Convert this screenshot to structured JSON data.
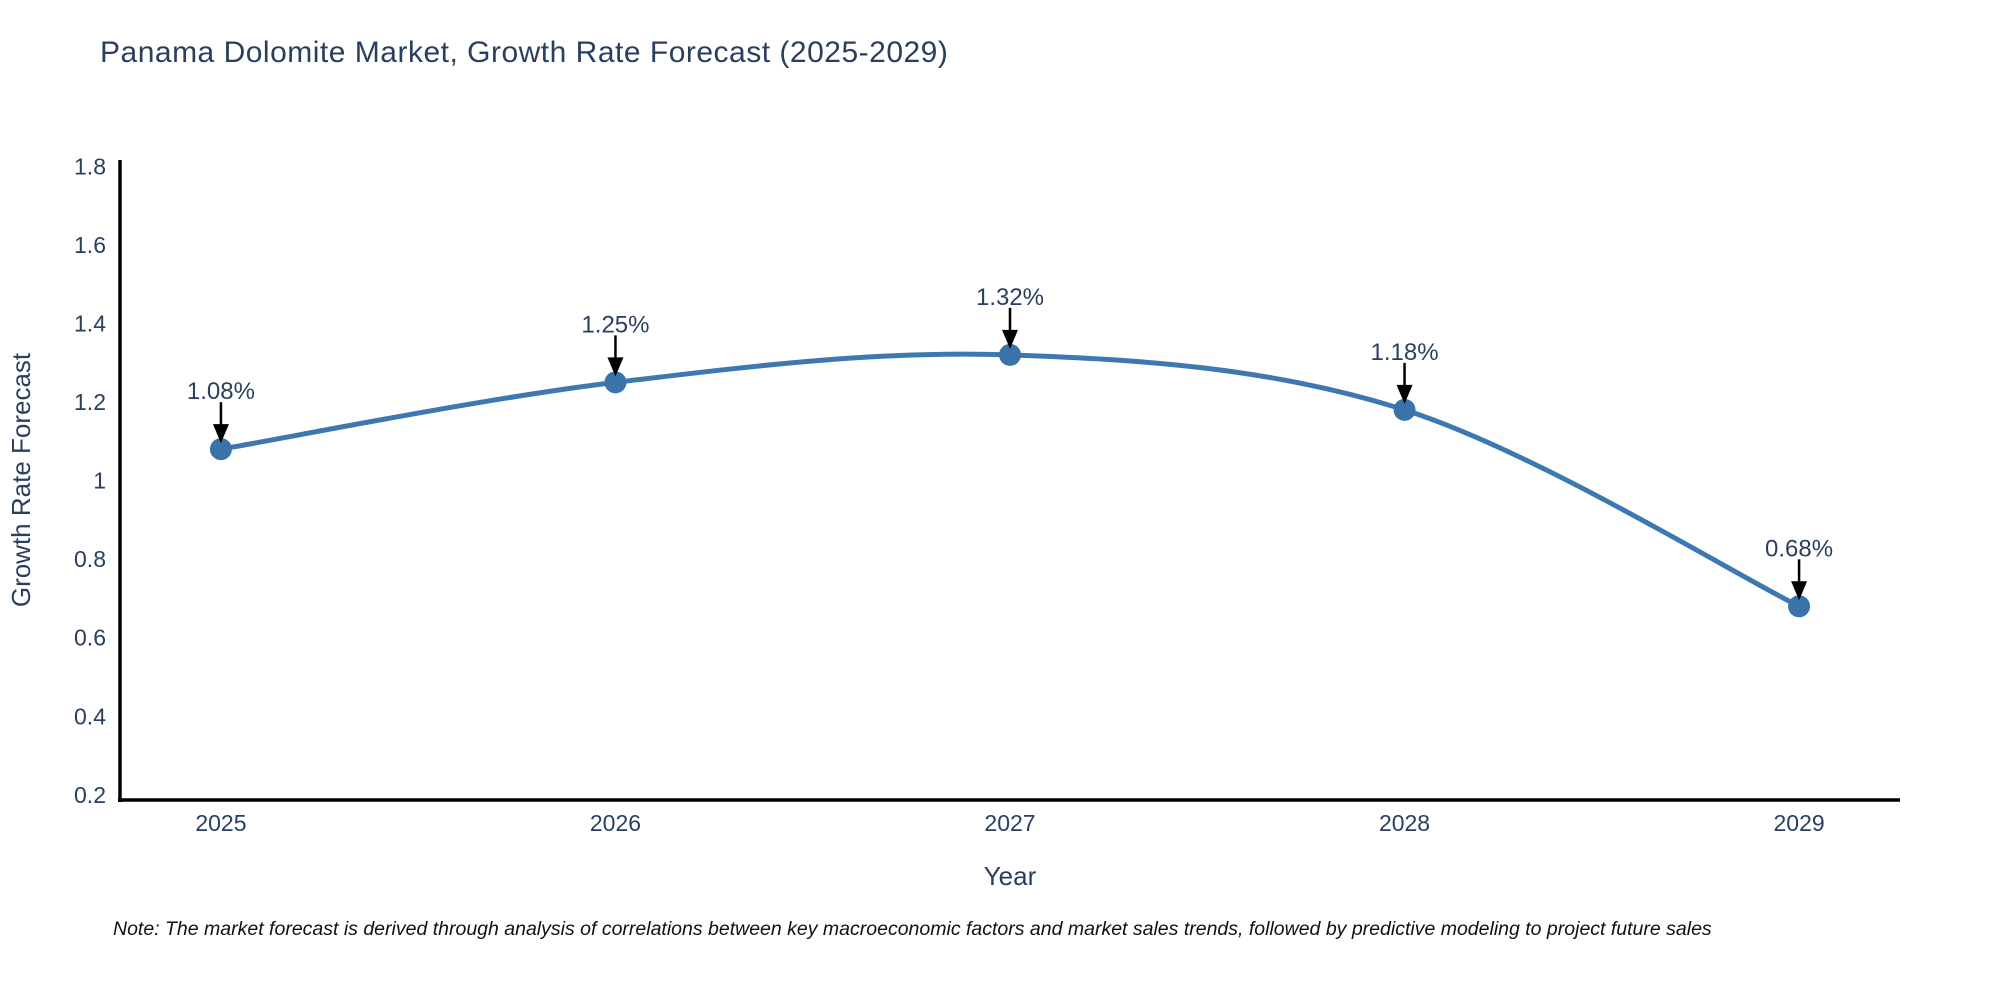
{
  "chart": {
    "title": "Panama Dolomite Market, Growth Rate Forecast (2025-2029)"
  },
  "chart_data": {
    "type": "line",
    "x": [
      2025,
      2026,
      2027,
      2028,
      2029
    ],
    "values": [
      1.08,
      1.25,
      1.32,
      1.18,
      0.68
    ],
    "point_labels": [
      "1.08%",
      "1.25%",
      "1.32%",
      "1.18%",
      "0.68%"
    ],
    "title": "Panama Dolomite Market, Growth Rate Forecast (2025-2029)",
    "xlabel": "Year",
    "ylabel": "Growth Rate Forecast",
    "xtick_labels": [
      "2025",
      "2026",
      "2027",
      "2028",
      "2029"
    ],
    "ytick_labels": [
      "0.2",
      "0.4",
      "0.6",
      "0.8",
      "1",
      "1.2",
      "1.4",
      "1.6",
      "1.8"
    ],
    "yticks": [
      0.2,
      0.4,
      0.6,
      0.8,
      1.0,
      1.2,
      1.4,
      1.6,
      1.8
    ],
    "ylim": [
      0.187,
      1.816
    ],
    "line_shape": "spline",
    "grid": false,
    "legend": "none",
    "colors": {
      "line": "#3e78b0",
      "marker": "#3a72aa",
      "axis": "#000000",
      "text": "#2a3f5f",
      "annotation_text": "#2a3f5f",
      "annotation_arrow": "#000000",
      "background": "#ffffff"
    }
  },
  "note": {
    "text": "Note: The market forecast is derived through analysis of correlations between key macroeconomic factors and market sales trends, followed by predictive modeling to project future sales"
  }
}
